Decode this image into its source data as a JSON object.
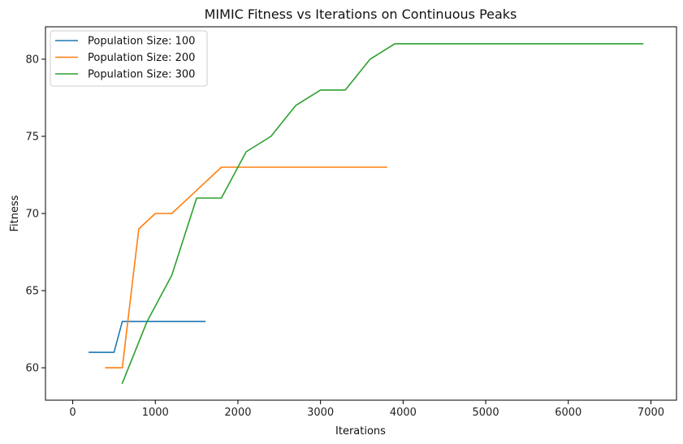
{
  "chart_data": {
    "type": "line",
    "title": "MIMIC Fitness vs Iterations on Continuous Peaks",
    "xlabel": "Iterations",
    "ylabel": "Fitness",
    "xlim": [
      -330,
      7310
    ],
    "ylim": [
      57.9,
      82.1
    ],
    "xticks": [
      0,
      1000,
      2000,
      3000,
      4000,
      5000,
      6000,
      7000
    ],
    "yticks": [
      60,
      65,
      70,
      75,
      80
    ],
    "grid": false,
    "legend_position": "top-left",
    "series": [
      {
        "name": "Population Size: 100",
        "color": "#1f77b4",
        "x": [
          200,
          500,
          600,
          900,
          1200,
          1600
        ],
        "y": [
          61,
          61,
          63,
          63,
          63,
          63
        ]
      },
      {
        "name": "Population Size: 200",
        "color": "#ff7f0e",
        "x": [
          400,
          600,
          800,
          1000,
          1200,
          1800,
          2000,
          2400,
          2800,
          3200,
          3600,
          3800
        ],
        "y": [
          60,
          60,
          69,
          70,
          70,
          73,
          73,
          73,
          73,
          73,
          73,
          73
        ]
      },
      {
        "name": "Population Size: 300",
        "color": "#2ca02c",
        "x": [
          600,
          900,
          1200,
          1500,
          1800,
          2100,
          2400,
          2700,
          3000,
          3300,
          3600,
          3900,
          4200,
          5000,
          6000,
          6900
        ],
        "y": [
          59,
          63,
          66,
          71,
          71,
          74,
          75,
          77,
          78,
          78,
          80,
          81,
          81,
          81,
          81,
          81
        ]
      }
    ]
  }
}
